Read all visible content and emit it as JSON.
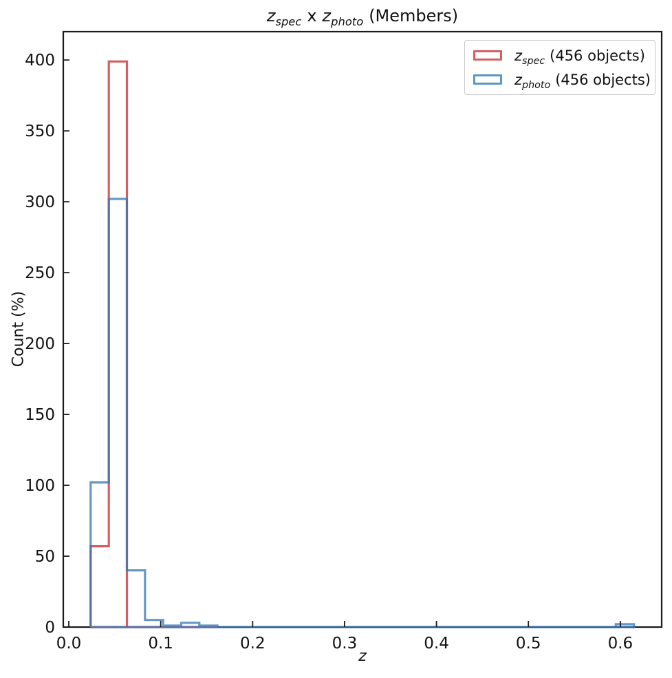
{
  "title": {
    "z1": "z",
    "z1_sub": "spec",
    "separator": "x",
    "z2": "z",
    "z2_sub": "photo",
    "suffix": "(Members)"
  },
  "axis": {
    "xlabel": "z",
    "ylabel": "Count (%)"
  },
  "legend": {
    "position": "upper right",
    "entries": [
      {
        "z": "z",
        "z_sub": "spec",
        "suffix": "(456 objects)",
        "swatch_color": "#d65f5f"
      },
      {
        "z": "z",
        "z_sub": "photo",
        "suffix": "(456 objects)",
        "swatch_color": "#5a96c8"
      }
    ]
  },
  "chart_data": {
    "type": "histogram-step",
    "title": "z_spec x z_photo (Members)",
    "xlabel": "z",
    "ylabel": "Count (%)",
    "xlim": [
      -0.006,
      0.645
    ],
    "ylim": [
      0,
      420
    ],
    "grid": false,
    "legend_position": "upper right",
    "x_ticks": [
      {
        "value": 0.0,
        "label": "0.0"
      },
      {
        "value": 0.1,
        "label": "0.1"
      },
      {
        "value": 0.2,
        "label": "0.2"
      },
      {
        "value": 0.3,
        "label": "0.3"
      },
      {
        "value": 0.4,
        "label": "0.4"
      },
      {
        "value": 0.5,
        "label": "0.5"
      },
      {
        "value": 0.6,
        "label": "0.6"
      }
    ],
    "y_ticks": [
      {
        "value": 0,
        "label": "0"
      },
      {
        "value": 50,
        "label": "50"
      },
      {
        "value": 100,
        "label": "100"
      },
      {
        "value": 150,
        "label": "150"
      },
      {
        "value": 200,
        "label": "200"
      },
      {
        "value": 250,
        "label": "250"
      },
      {
        "value": 300,
        "label": "300"
      },
      {
        "value": 350,
        "label": "350"
      },
      {
        "value": 400,
        "label": "400"
      }
    ],
    "series": [
      {
        "name": "z_spec (456 objects)",
        "n_objects": 456,
        "color": "#d65f5f",
        "opacity": 1.0,
        "bin_start": 0.0238,
        "bin_width": 0.0197,
        "counts": [
          57,
          399,
          0,
          0,
          0,
          0,
          0
        ]
      },
      {
        "name": "z_photo (456 objects)",
        "n_objects": 456,
        "color": "#3577b4",
        "opacity": 0.76,
        "bin_start": 0.0238,
        "bin_width": 0.0197,
        "counts": [
          102,
          302,
          40,
          5,
          1,
          3,
          1,
          0,
          0,
          0,
          0,
          0,
          0,
          0,
          0,
          0,
          0,
          0,
          0,
          0,
          0,
          0,
          0,
          0,
          0,
          0,
          0,
          0,
          0,
          2
        ]
      }
    ]
  }
}
